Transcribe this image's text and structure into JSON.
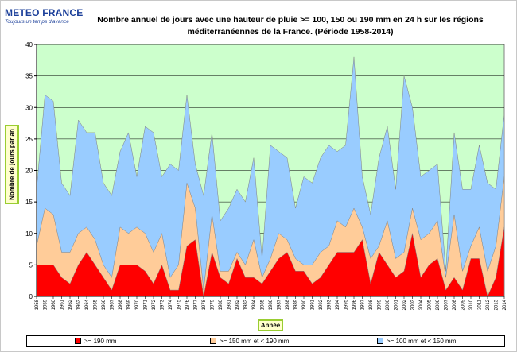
{
  "logo": {
    "name": "METEO FRANCE",
    "tagline": "Toujours un temps d'avance"
  },
  "chart_data": {
    "type": "area",
    "title_line1": "Nombre annuel de jours avec une hauteur de pluie >= 100, 150 ou 190 mm en 24 h sur les régions",
    "title_line2": "méditerranéennes de la France. (Période 1958-2014)",
    "xlabel": "Année",
    "ylabel": "Nombre de jours par an",
    "ylim": [
      0,
      40
    ],
    "yticks": [
      0,
      5,
      10,
      15,
      20,
      25,
      30,
      35,
      40
    ],
    "x": [
      1958,
      1959,
      1960,
      1961,
      1962,
      1963,
      1964,
      1965,
      1966,
      1967,
      1968,
      1969,
      1970,
      1971,
      1972,
      1973,
      1974,
      1975,
      1976,
      1977,
      1978,
      1979,
      1980,
      1981,
      1982,
      1983,
      1984,
      1985,
      1986,
      1987,
      1988,
      1989,
      1990,
      1991,
      1992,
      1993,
      1994,
      1995,
      1996,
      1997,
      1998,
      1999,
      2000,
      2001,
      2002,
      2003,
      2004,
      2005,
      2006,
      2007,
      2008,
      2009,
      2010,
      2011,
      2012,
      2013,
      2014
    ],
    "series": [
      {
        "name": ">= 100 mm et < 150 mm",
        "color": "#99ccff",
        "values": [
          17,
          32,
          31,
          18,
          16,
          28,
          26,
          26,
          18,
          16,
          23,
          26,
          19,
          27,
          26,
          19,
          21,
          20,
          32,
          21,
          16,
          26,
          12,
          14,
          17,
          15,
          22,
          6,
          24,
          23,
          22,
          14,
          19,
          18,
          22,
          24,
          23,
          24,
          38,
          19,
          13,
          22,
          27,
          17,
          35,
          30,
          19,
          20,
          21,
          4,
          26,
          17,
          17,
          24,
          18,
          17,
          29
        ]
      },
      {
        "name": ">= 150 mm et < 190 mm",
        "color": "#ffcc99",
        "values": [
          8,
          14,
          13,
          7,
          7,
          10,
          11,
          9,
          5,
          3,
          11,
          10,
          11,
          10,
          7,
          10,
          3,
          5,
          18,
          14,
          1,
          13,
          4,
          4,
          7,
          5,
          9,
          3,
          6,
          10,
          9,
          6,
          5,
          5,
          7,
          8,
          12,
          11,
          14,
          11,
          6,
          8,
          12,
          6,
          7,
          14,
          9,
          10,
          12,
          3,
          13,
          4,
          8,
          11,
          4,
          8,
          19
        ]
      },
      {
        "name": ">= 190 mm",
        "color": "#ff0000",
        "values": [
          5,
          5,
          5,
          3,
          2,
          5,
          7,
          5,
          3,
          1,
          5,
          5,
          5,
          4,
          2,
          5,
          1,
          1,
          8,
          9,
          0,
          7,
          3,
          2,
          6,
          3,
          3,
          2,
          4,
          6,
          7,
          4,
          4,
          2,
          3,
          5,
          7,
          7,
          7,
          9,
          2,
          7,
          5,
          3,
          4,
          10,
          3,
          5,
          6,
          1,
          3,
          1,
          6,
          6,
          0,
          3,
          11
        ]
      }
    ],
    "grid": true,
    "background": "#ccffcc",
    "legend_position": "bottom"
  }
}
